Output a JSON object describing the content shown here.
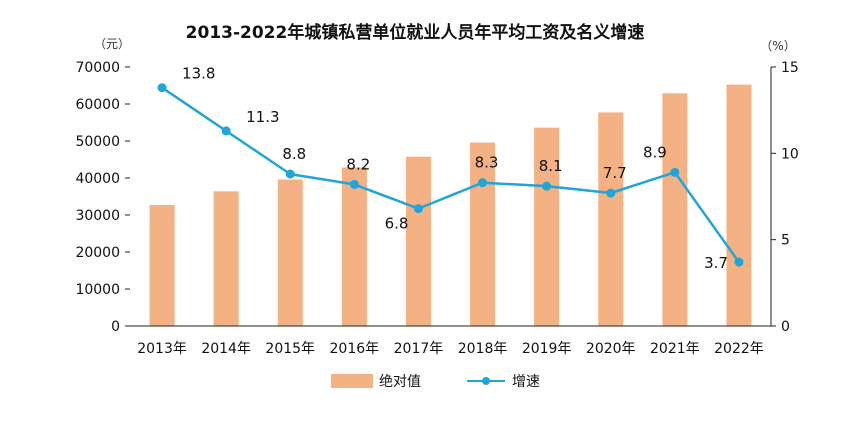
{
  "colors": {
    "bar": "#f4b183",
    "line": "#1fa5d8",
    "axis": "#222222"
  },
  "chart_data": {
    "type": "bar",
    "title": "2013-2022年城镇私营单位就业人员年平均工资及名义增速",
    "left_unit": "（元）",
    "right_unit": "（%）",
    "categories": [
      "2013年",
      "2014年",
      "2015年",
      "2016年",
      "2017年",
      "2018年",
      "2019年",
      "2020年",
      "2021年",
      "2022年"
    ],
    "series": [
      {
        "name": "绝对值",
        "type": "bar",
        "axis": "left",
        "values": [
          32706,
          36390,
          39589,
          42833,
          45761,
          49575,
          53604,
          57727,
          62884,
          65237
        ]
      },
      {
        "name": "增速",
        "type": "line",
        "axis": "right",
        "values": [
          13.8,
          11.3,
          8.8,
          8.2,
          6.8,
          8.3,
          8.1,
          7.7,
          8.9,
          3.7
        ],
        "labels": [
          "13.8",
          "11.3",
          "8.8",
          "8.2",
          "6.8",
          "8.3",
          "8.1",
          "7.7",
          "8.9",
          "3.7"
        ]
      }
    ],
    "left_ticks": [
      "0",
      "10000",
      "20000",
      "30000",
      "40000",
      "50000",
      "60000",
      "70000"
    ],
    "right_ticks": [
      "0",
      "5",
      "10",
      "15"
    ],
    "ylim_left": [
      0,
      70000
    ],
    "ylim_right": [
      0,
      15
    ],
    "grid": false,
    "legend_position": "bottom-center"
  }
}
